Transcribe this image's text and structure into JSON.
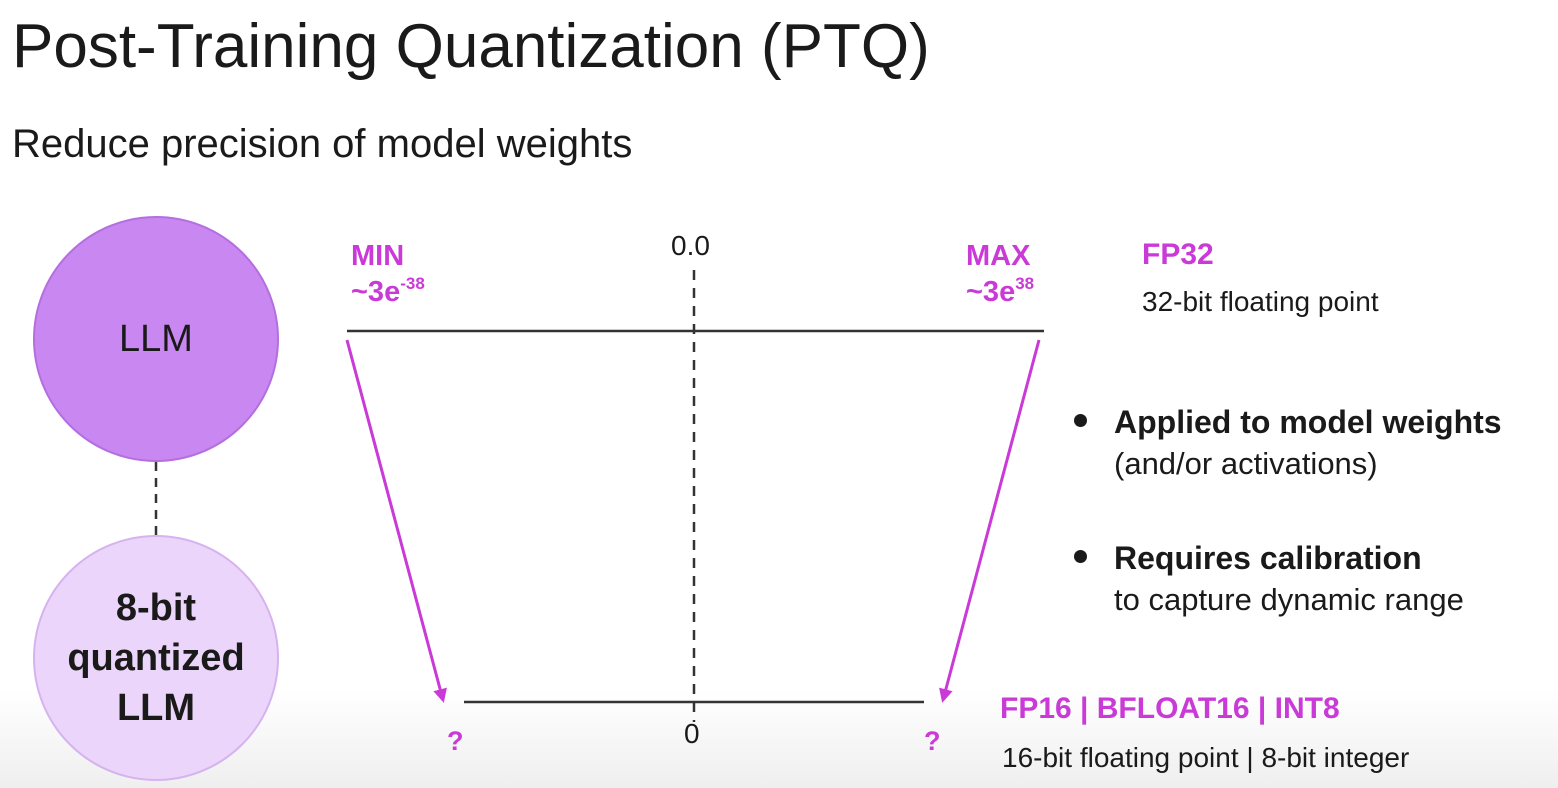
{
  "slide": {
    "title": "Post-Training Quantization (PTQ)",
    "subtitle": "Reduce precision of model weights"
  },
  "models": {
    "original": "LLM",
    "quantized": "8-bit\nquantized\nLLM"
  },
  "fp32_range": {
    "min_label": "MIN",
    "min_value_base": "~3e",
    "min_value_exp": "-38",
    "zero_label": "0.0",
    "max_label": "MAX",
    "max_value_base": "~3e",
    "max_value_exp": "38"
  },
  "target_range": {
    "min_label": "?",
    "zero_label": "0",
    "max_label": "?"
  },
  "formats": {
    "source_title": "FP32",
    "source_desc": "32-bit floating point",
    "target_title": "FP16 | BFLOAT16 | INT8",
    "target_desc": "16-bit floating point | 8-bit integer"
  },
  "bullets": [
    {
      "head": "Applied to model weights",
      "body": "(and/or activations)"
    },
    {
      "head": "Requires calibration",
      "body": "to capture dynamic range"
    }
  ],
  "colors": {
    "accent": "#c93ad7",
    "llm_circle": "#c987f1",
    "quantized_circle": "#ecd5fa",
    "line": "#333333"
  }
}
